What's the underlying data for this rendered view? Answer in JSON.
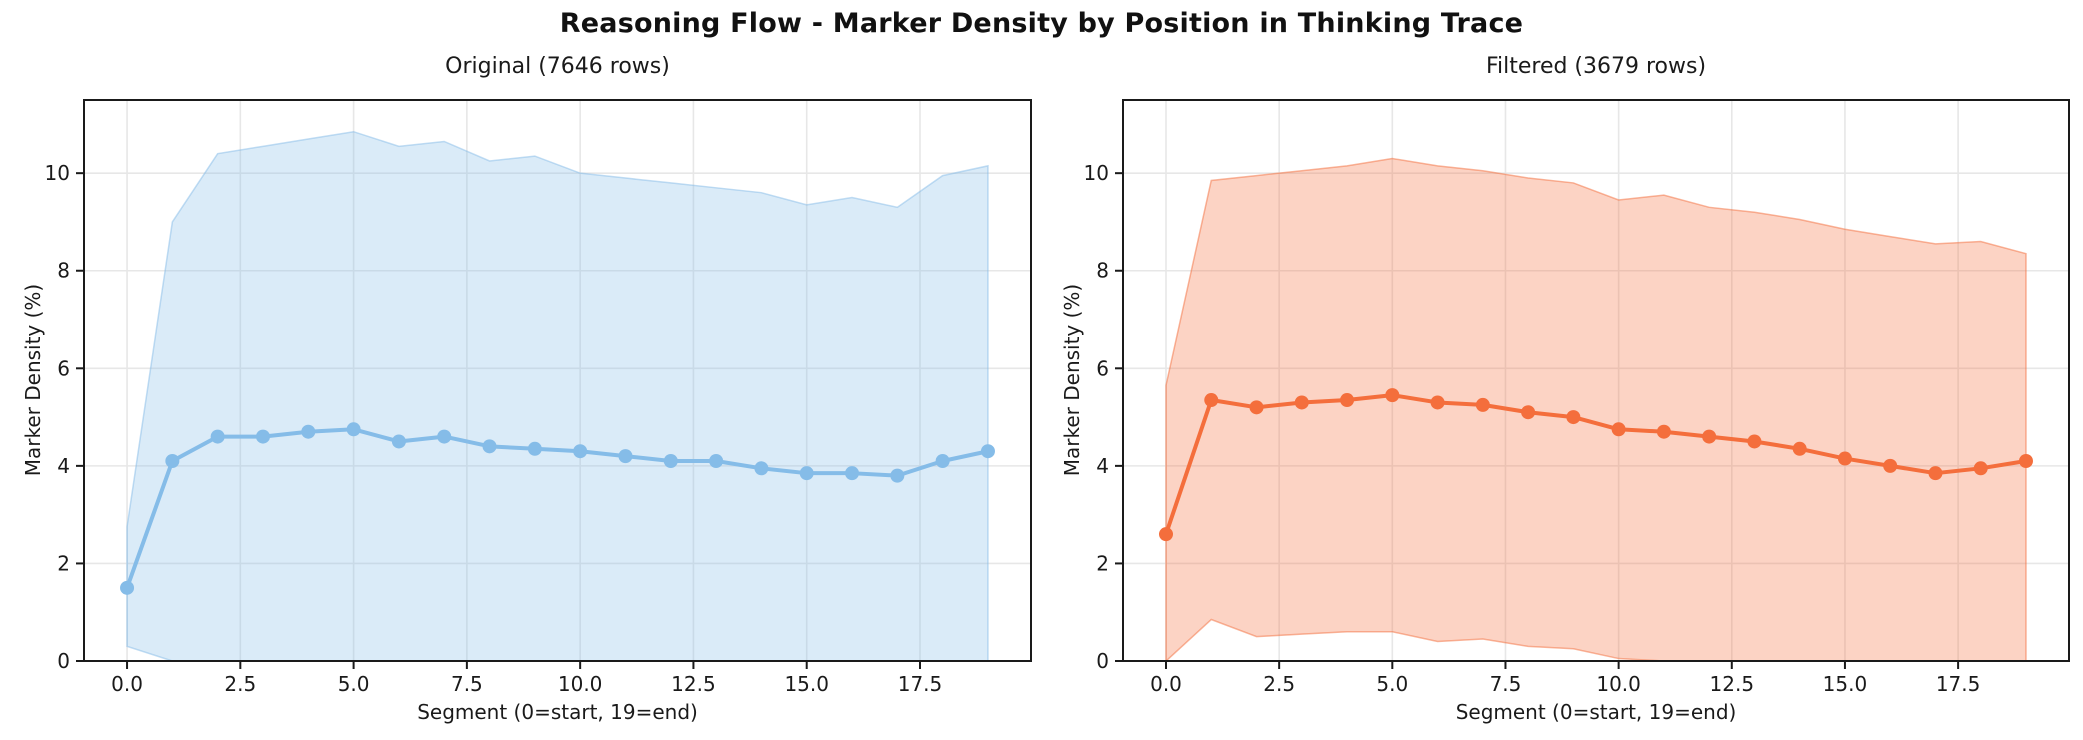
{
  "figure": {
    "title": "Reasoning Flow - Marker Density by Position in Thinking Trace"
  },
  "colors": {
    "original_line": "#85bce8",
    "filtered_line": "#f46e3c",
    "grid": "#e7e7e7",
    "spine": "#1a1a1a",
    "background": "#ffffff"
  },
  "chart_data": [
    {
      "type": "line",
      "title": "Original (7646 rows)",
      "xlabel": "Segment (0=start, 19=end)",
      "ylabel": "Marker Density (%)",
      "x": [
        0,
        1,
        2,
        3,
        4,
        5,
        6,
        7,
        8,
        9,
        10,
        11,
        12,
        13,
        14,
        15,
        16,
        17,
        18,
        19
      ],
      "series": [
        {
          "name": "mean",
          "values": [
            1.5,
            4.1,
            4.6,
            4.6,
            4.7,
            4.75,
            4.5,
            4.6,
            4.4,
            4.35,
            4.3,
            4.2,
            4.1,
            4.1,
            3.95,
            3.85,
            3.85,
            3.8,
            4.1,
            4.3
          ]
        },
        {
          "name": "band_upper",
          "values": [
            2.75,
            9.0,
            10.4,
            10.55,
            10.7,
            10.85,
            10.55,
            10.65,
            10.25,
            10.35,
            10.0,
            9.9,
            9.8,
            9.7,
            9.6,
            9.35,
            9.5,
            9.3,
            9.95,
            10.15
          ]
        },
        {
          "name": "band_lower",
          "values": [
            0.3,
            0,
            0,
            0,
            0,
            0,
            0,
            0,
            0,
            0,
            0,
            0,
            0,
            0,
            0,
            0,
            0,
            0,
            0,
            0
          ]
        }
      ],
      "xlim": [
        -0.95,
        19.95
      ],
      "ylim": [
        0,
        11.5
      ],
      "xticks": [
        0,
        2.5,
        5,
        7.5,
        10,
        12.5,
        15,
        17.5
      ],
      "xtick_labels": [
        "0.0",
        "2.5",
        "5.0",
        "7.5",
        "10.0",
        "12.5",
        "15.0",
        "17.5"
      ],
      "yticks": [
        0,
        2,
        4,
        6,
        8,
        10
      ],
      "ytick_labels": [
        "0",
        "2",
        "4",
        "6",
        "8",
        "10"
      ],
      "grid": true,
      "legend_position": "none",
      "line_color": "#85bce8",
      "band_alpha": 0.3
    },
    {
      "type": "line",
      "title": "Filtered (3679 rows)",
      "xlabel": "Segment (0=start, 19=end)",
      "ylabel": "Marker Density (%)",
      "x": [
        0,
        1,
        2,
        3,
        4,
        5,
        6,
        7,
        8,
        9,
        10,
        11,
        12,
        13,
        14,
        15,
        16,
        17,
        18,
        19
      ],
      "series": [
        {
          "name": "mean",
          "values": [
            2.6,
            5.35,
            5.2,
            5.3,
            5.35,
            5.45,
            5.3,
            5.25,
            5.1,
            5.0,
            4.75,
            4.7,
            4.6,
            4.5,
            4.35,
            4.15,
            4.0,
            3.85,
            3.95,
            4.1
          ]
        },
        {
          "name": "band_upper",
          "values": [
            5.65,
            9.85,
            9.95,
            10.05,
            10.15,
            10.3,
            10.15,
            10.05,
            9.9,
            9.8,
            9.45,
            9.55,
            9.3,
            9.2,
            9.05,
            8.85,
            8.7,
            8.55,
            8.6,
            8.35
          ]
        },
        {
          "name": "band_lower",
          "values": [
            0,
            0.85,
            0.5,
            0.55,
            0.6,
            0.6,
            0.4,
            0.45,
            0.3,
            0.25,
            0.05,
            0,
            0,
            0,
            0,
            0,
            0,
            0,
            0,
            0
          ]
        }
      ],
      "xlim": [
        -0.95,
        19.95
      ],
      "ylim": [
        0,
        11.5
      ],
      "xticks": [
        0,
        2.5,
        5,
        7.5,
        10,
        12.5,
        15,
        17.5
      ],
      "xtick_labels": [
        "0.0",
        "2.5",
        "5.0",
        "7.5",
        "10.0",
        "12.5",
        "15.0",
        "17.5"
      ],
      "yticks": [
        0,
        2,
        4,
        6,
        8,
        10
      ],
      "ytick_labels": [
        "0",
        "2",
        "4",
        "6",
        "8",
        "10"
      ],
      "grid": true,
      "legend_position": "none",
      "line_color": "#f46e3c",
      "band_alpha": 0.3
    }
  ]
}
